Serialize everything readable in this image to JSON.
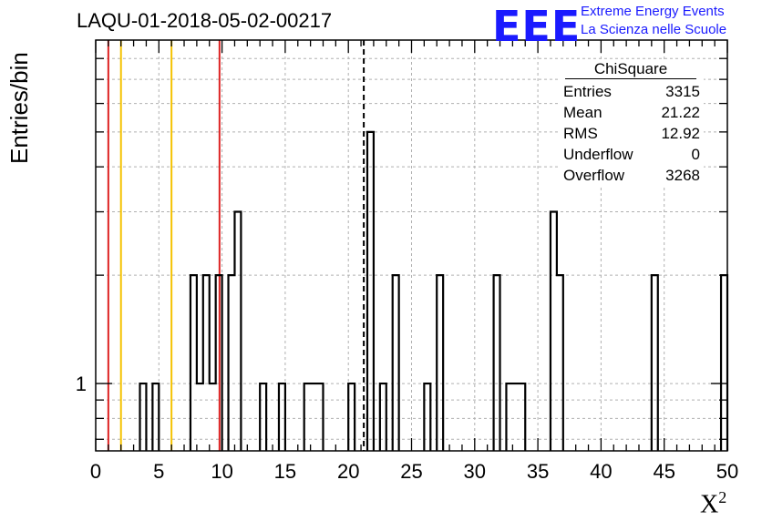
{
  "chart_data": {
    "type": "histogram",
    "title": "LAQU-01-2018-05-02-00217",
    "xlabel": "X",
    "xlabel_superscript": "2",
    "ylabel": "Entries/bin",
    "y_scale": "log",
    "xlim": [
      0,
      50
    ],
    "ylim": [
      0.65,
      9.0
    ],
    "grid": true,
    "x_ticks": [
      "0",
      "5",
      "10",
      "15",
      "20",
      "25",
      "30",
      "35",
      "40",
      "45",
      "50"
    ],
    "y_tick_labels": [
      "1"
    ],
    "bin_width": 0.5,
    "bins": [
      [
        3.5,
        1
      ],
      [
        4.5,
        1
      ],
      [
        7.5,
        2
      ],
      [
        8.0,
        1
      ],
      [
        8.5,
        2
      ],
      [
        9.0,
        1
      ],
      [
        9.5,
        2
      ],
      [
        10.5,
        2
      ],
      [
        11.0,
        3
      ],
      [
        13.0,
        1
      ],
      [
        14.5,
        1
      ],
      [
        16.5,
        1
      ],
      [
        17.0,
        1
      ],
      [
        17.5,
        1
      ],
      [
        20.0,
        1
      ],
      [
        21.5,
        5
      ],
      [
        22.5,
        1
      ],
      [
        23.5,
        2
      ],
      [
        26.0,
        1
      ],
      [
        27.0,
        2
      ],
      [
        31.5,
        2
      ],
      [
        32.5,
        1
      ],
      [
        33.0,
        1
      ],
      [
        33.5,
        1
      ],
      [
        36.0,
        3
      ],
      [
        36.5,
        2
      ],
      [
        44.0,
        2
      ],
      [
        49.5,
        2
      ]
    ],
    "vertical_lines": [
      {
        "x": 1.0,
        "color": "#dd2222",
        "style": "solid"
      },
      {
        "x": 2.0,
        "color": "#f5c200",
        "style": "solid"
      },
      {
        "x": 6.0,
        "color": "#f5c200",
        "style": "solid"
      },
      {
        "x": 9.8,
        "color": "#dd2222",
        "style": "solid"
      },
      {
        "x": 21.22,
        "color": "#000000",
        "style": "dashed"
      }
    ],
    "stats_box": {
      "title": "ChiSquare",
      "rows": [
        {
          "label": "Entries",
          "value": "3315"
        },
        {
          "label": "Mean",
          "value": "21.22"
        },
        {
          "label": "RMS",
          "value": "12.92"
        },
        {
          "label": "Underflow",
          "value": "0"
        },
        {
          "label": "Overflow",
          "value": "3268"
        }
      ]
    }
  },
  "logo": {
    "mark": "EEE",
    "line1": "Extreme Energy Events",
    "line2": "La Scienza nelle Scuole",
    "color": "#1a1aff"
  }
}
